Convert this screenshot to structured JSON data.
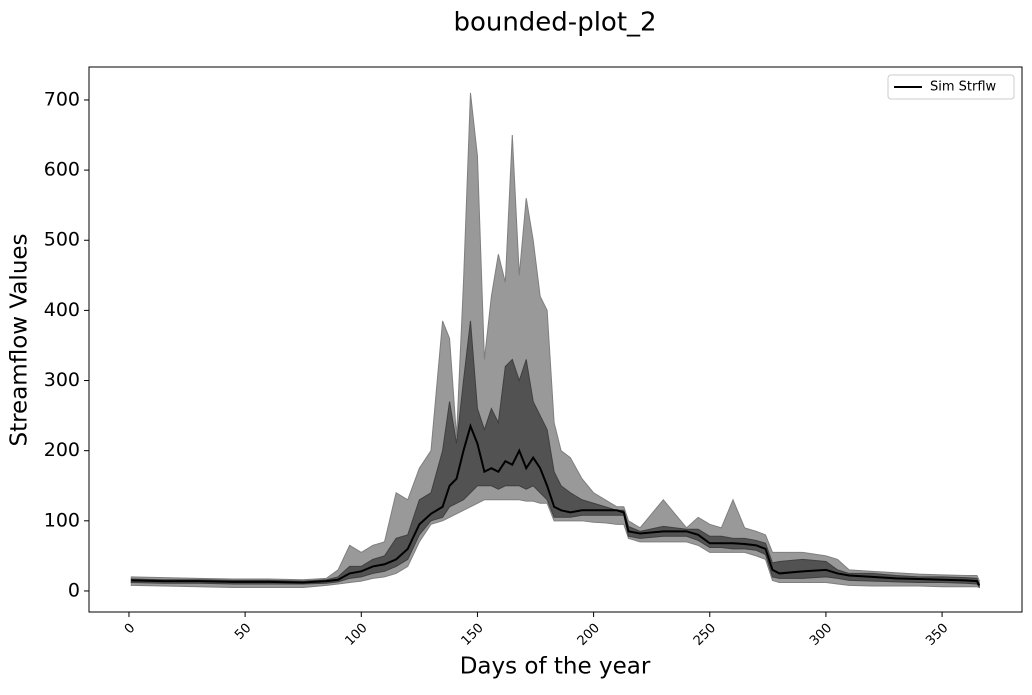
{
  "chart_data": {
    "type": "bounded-line",
    "title": "bounded-plot_2",
    "xlabel": "Days of the year",
    "ylabel": "Streamflow Values",
    "x": [
      1,
      15,
      30,
      45,
      60,
      75,
      85,
      90,
      95,
      100,
      105,
      110,
      115,
      120,
      125,
      130,
      135,
      138,
      141,
      144,
      147,
      150,
      153,
      156,
      159,
      162,
      165,
      168,
      171,
      174,
      177,
      180,
      183,
      186,
      190,
      195,
      200,
      205,
      210,
      213,
      215,
      220,
      230,
      240,
      245,
      250,
      255,
      260,
      265,
      270,
      274,
      277,
      280,
      290,
      300,
      305,
      310,
      320,
      330,
      340,
      350,
      360,
      365,
      366
    ],
    "series": [
      {
        "name": "Sim Strflw",
        "color": "#000000",
        "values": [
          15,
          14,
          14,
          13,
          13,
          12,
          14,
          16,
          25,
          28,
          35,
          38,
          45,
          60,
          95,
          110,
          120,
          150,
          160,
          200,
          235,
          210,
          170,
          175,
          170,
          185,
          180,
          200,
          175,
          190,
          175,
          150,
          120,
          115,
          112,
          115,
          115,
          115,
          115,
          112,
          85,
          82,
          85,
          85,
          80,
          68,
          68,
          68,
          67,
          65,
          60,
          30,
          25,
          28,
          30,
          25,
          22,
          20,
          18,
          17,
          16,
          15,
          14,
          8
        ]
      }
    ],
    "bands": [
      {
        "color": "#7f7f7f",
        "lower": [
          8,
          7,
          6,
          5,
          5,
          5,
          8,
          10,
          12,
          14,
          18,
          20,
          25,
          35,
          70,
          95,
          100,
          105,
          110,
          115,
          120,
          125,
          130,
          130,
          130,
          130,
          130,
          130,
          128,
          128,
          125,
          125,
          100,
          100,
          100,
          100,
          98,
          97,
          95,
          95,
          75,
          70,
          70,
          70,
          65,
          55,
          55,
          55,
          55,
          50,
          45,
          15,
          12,
          12,
          12,
          10,
          8,
          7,
          7,
          7,
          6,
          6,
          6,
          5
        ],
        "upper": [
          20,
          19,
          18,
          17,
          17,
          16,
          18,
          30,
          65,
          55,
          65,
          70,
          140,
          130,
          175,
          200,
          385,
          360,
          220,
          440,
          710,
          620,
          330,
          420,
          480,
          440,
          650,
          450,
          560,
          500,
          420,
          400,
          240,
          200,
          190,
          160,
          140,
          130,
          120,
          120,
          100,
          90,
          130,
          90,
          105,
          95,
          90,
          130,
          90,
          85,
          80,
          55,
          55,
          55,
          50,
          45,
          30,
          28,
          26,
          24,
          23,
          22,
          22,
          15
        ]
      },
      {
        "color": "#404040",
        "lower": [
          12,
          11,
          11,
          10,
          10,
          10,
          11,
          13,
          18,
          20,
          25,
          28,
          35,
          45,
          80,
          100,
          105,
          120,
          125,
          130,
          140,
          150,
          150,
          150,
          145,
          150,
          150,
          150,
          145,
          150,
          140,
          130,
          105,
          105,
          105,
          108,
          108,
          108,
          108,
          108,
          78,
          75,
          78,
          78,
          72,
          62,
          62,
          60,
          60,
          58,
          52,
          20,
          18,
          18,
          20,
          18,
          15,
          14,
          13,
          12,
          12,
          11,
          10,
          6
        ],
        "upper": [
          17,
          16,
          16,
          15,
          15,
          14,
          16,
          20,
          35,
          35,
          45,
          50,
          75,
          80,
          130,
          140,
          200,
          270,
          210,
          300,
          385,
          260,
          230,
          260,
          240,
          320,
          330,
          300,
          330,
          270,
          250,
          230,
          170,
          150,
          140,
          130,
          125,
          120,
          115,
          115,
          92,
          85,
          92,
          88,
          88,
          78,
          78,
          75,
          75,
          72,
          68,
          40,
          42,
          45,
          42,
          30,
          25,
          25,
          22,
          20,
          20,
          19,
          18,
          10
        ]
      }
    ],
    "xlim": [
      -17.2,
      384.4
    ],
    "ylim": [
      -30,
      747
    ],
    "xticks": [
      0,
      50,
      100,
      150,
      200,
      250,
      300,
      350
    ],
    "yticks": [
      0,
      100,
      200,
      300,
      400,
      500,
      600,
      700
    ],
    "legend": "upper right"
  }
}
